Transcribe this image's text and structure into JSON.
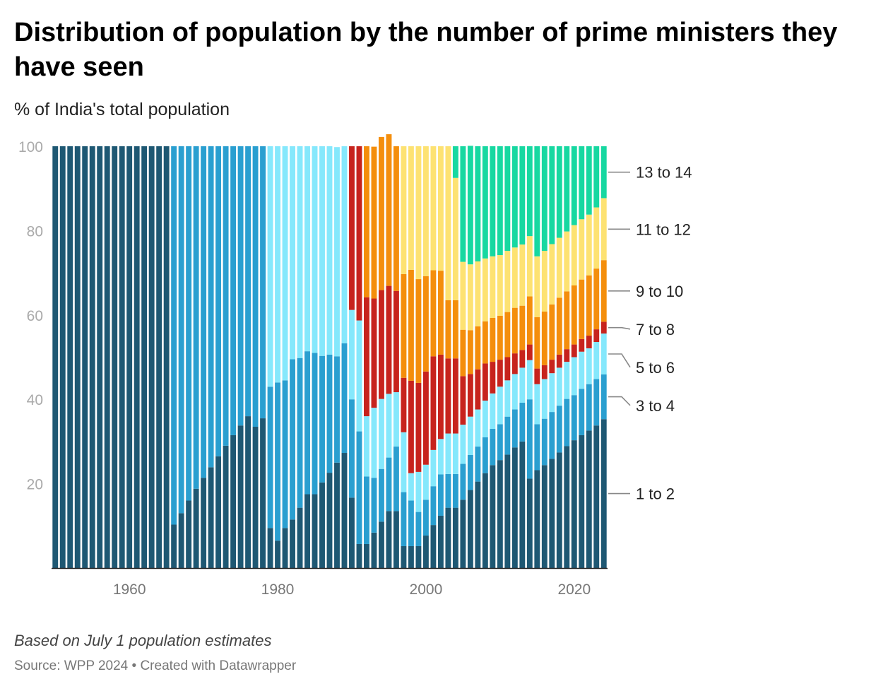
{
  "title": "Distribution of population by the number of prime ministers they have seen",
  "subtitle": "% of India's total population",
  "note": "Based on July 1 population estimates",
  "source": "Source: WPP 2024 • Created with Datawrapper",
  "chart_data": {
    "type": "bar",
    "stacked": true,
    "grid": false,
    "ylim": [
      0,
      100
    ],
    "yticks": [
      "20",
      "40",
      "60",
      "80",
      "100"
    ],
    "xticks": [
      "1960",
      "1980",
      "2000",
      "2020"
    ],
    "legend_placement": "right, labels aligned to the last bar",
    "categories": [
      1950,
      1951,
      1952,
      1953,
      1954,
      1955,
      1956,
      1957,
      1958,
      1959,
      1960,
      1961,
      1962,
      1963,
      1964,
      1965,
      1966,
      1967,
      1968,
      1969,
      1970,
      1971,
      1972,
      1973,
      1974,
      1975,
      1976,
      1977,
      1978,
      1979,
      1980,
      1981,
      1982,
      1983,
      1984,
      1985,
      1986,
      1987,
      1988,
      1989,
      1990,
      1991,
      1992,
      1993,
      1994,
      1995,
      1996,
      1997,
      1998,
      1999,
      2000,
      2001,
      2002,
      2003,
      2004,
      2005,
      2006,
      2007,
      2008,
      2009,
      2010,
      2011,
      2012,
      2013,
      2014,
      2015,
      2016,
      2017,
      2018,
      2019,
      2020,
      2021,
      2022,
      2023,
      2024
    ],
    "series": [
      {
        "name": "1 to 2",
        "color": "#1e5873",
        "values": [
          100,
          100,
          100,
          100,
          100,
          100,
          100,
          100,
          100,
          100,
          100,
          100,
          100,
          100,
          100,
          100,
          10.3,
          13,
          16,
          18.8,
          21.4,
          23.9,
          26.5,
          29,
          31.5,
          33.8,
          36,
          33.5,
          35.5,
          9.5,
          6.5,
          9.5,
          11.5,
          14.3,
          17.5,
          17.5,
          20.3,
          22.6,
          25,
          27.3,
          16.7,
          5.7,
          5.7,
          8.4,
          11,
          13.5,
          13.5,
          5.2,
          5.2,
          5.2,
          7.7,
          10.2,
          12.4,
          14.3,
          14.3,
          16.2,
          18.5,
          20.5,
          22.5,
          24.4,
          25.6,
          26.9,
          28.6,
          30,
          21.2,
          23.2,
          24.4,
          25.9,
          27.4,
          28.9,
          30.3,
          31.5,
          32.6,
          33.8,
          35.3
        ]
      },
      {
        "name": "3 to 4",
        "color": "#2a9fd0",
        "values": [
          0,
          0,
          0,
          0,
          0,
          0,
          0,
          0,
          0,
          0,
          0,
          0,
          0,
          0,
          0,
          0,
          89.7,
          87,
          84,
          81.2,
          78.6,
          76.1,
          73.5,
          71,
          68.5,
          66.2,
          64,
          66.5,
          64.5,
          33.5,
          37.5,
          35,
          38,
          35.5,
          33.9,
          33.5,
          30,
          28,
          25.2,
          26,
          23.3,
          26.7,
          16,
          13,
          12.5,
          12.7,
          15.3,
          12.8,
          10.8,
          8.1,
          8.5,
          9.2,
          9.8,
          8,
          8,
          8.5,
          8.3,
          8.3,
          8.5,
          8.6,
          8.5,
          9,
          9,
          9.2,
          18.8,
          10.9,
          11,
          11.1,
          11.1,
          11.2,
          10.7,
          11,
          11,
          11,
          10.6
        ]
      },
      {
        "name": "5 to 6",
        "color": "#85e8fc",
        "values": [
          0,
          0,
          0,
          0,
          0,
          0,
          0,
          0,
          0,
          0,
          0,
          0,
          0,
          0,
          0,
          0,
          0,
          0,
          0,
          0,
          0,
          0,
          0,
          0,
          0,
          0,
          0,
          0,
          0,
          57,
          56,
          55.5,
          50.5,
          50.2,
          48.6,
          49,
          49.7,
          49.4,
          49.6,
          46.7,
          21.2,
          26.3,
          14.3,
          16.6,
          16.6,
          15.1,
          12.9,
          14.2,
          6.5,
          9.5,
          8.3,
          8.6,
          8.4,
          9.6,
          9.6,
          9.3,
          9.1,
          8.8,
          8.7,
          8.4,
          8.9,
          8.6,
          8.4,
          8.3,
          9.3,
          9.5,
          9.4,
          9.2,
          9,
          8.8,
          9,
          8.8,
          8.5,
          8.8,
          9.7
        ]
      },
      {
        "name": "7 to 8",
        "color": "#c7231d",
        "values": [
          0,
          0,
          0,
          0,
          0,
          0,
          0,
          0,
          0,
          0,
          0,
          0,
          0,
          0,
          0,
          0,
          0,
          0,
          0,
          0,
          0,
          0,
          0,
          0,
          0,
          0,
          0,
          0,
          0,
          0,
          0,
          0,
          0,
          0,
          0,
          0,
          0,
          0,
          0,
          0,
          38.8,
          41.3,
          28.2,
          25.9,
          25.8,
          25.6,
          24,
          12.9,
          21.9,
          21.1,
          22.1,
          22.2,
          20,
          17.8,
          17.8,
          11.5,
          10.1,
          9.5,
          8.8,
          7.5,
          6.4,
          5.5,
          4.9,
          4.2,
          3.7,
          3.7,
          3.3,
          3.2,
          3.1,
          3,
          3,
          3,
          3,
          3,
          2.8
        ]
      },
      {
        "name": "9 to 10",
        "color": "#f48e0c",
        "values": [
          0,
          0,
          0,
          0,
          0,
          0,
          0,
          0,
          0,
          0,
          0,
          0,
          0,
          0,
          0,
          0,
          0,
          0,
          0,
          0,
          0,
          0,
          0,
          0,
          0,
          0,
          0,
          0,
          0,
          0,
          0,
          0,
          0,
          0,
          0,
          0,
          0,
          0,
          0,
          0,
          0,
          0,
          35.8,
          36,
          36.3,
          38.5,
          34.3,
          24.6,
          26.3,
          24.6,
          22.6,
          20.4,
          19.9,
          13.8,
          13.8,
          11,
          10.4,
          10.2,
          10,
          10.4,
          10.4,
          10.7,
          10.8,
          10.5,
          11.4,
          12.2,
          12.7,
          13.1,
          13.5,
          13.7,
          14,
          14.1,
          14.3,
          14.4,
          14.6
        ]
      },
      {
        "name": "11 to 12",
        "color": "#fde272",
        "values": [
          0,
          0,
          0,
          0,
          0,
          0,
          0,
          0,
          0,
          0,
          0,
          0,
          0,
          0,
          0,
          0,
          0,
          0,
          0,
          0,
          0,
          0,
          0,
          0,
          0,
          0,
          0,
          0,
          0,
          0,
          0,
          0,
          0,
          0,
          0,
          0,
          0,
          0,
          0,
          0,
          0,
          0,
          0,
          0,
          0,
          0,
          0,
          30.3,
          29.3,
          31.5,
          30.8,
          29.4,
          29.5,
          36.5,
          29,
          16.1,
          15.6,
          15.4,
          14.9,
          14.6,
          14.4,
          14.5,
          14.3,
          14.5,
          14.3,
          14.4,
          14.4,
          14.3,
          14.2,
          14.2,
          14.3,
          14.3,
          14.4,
          14.5,
          14.7
        ]
      },
      {
        "name": "13 to 14",
        "color": "#17d8a1",
        "values": [
          0,
          0,
          0,
          0,
          0,
          0,
          0,
          0,
          0,
          0,
          0,
          0,
          0,
          0,
          0,
          0,
          0,
          0,
          0,
          0,
          0,
          0,
          0,
          0,
          0,
          0,
          0,
          0,
          0,
          0,
          0,
          0,
          0,
          0,
          0,
          0,
          0,
          0,
          0,
          0,
          0,
          0,
          0,
          0,
          0,
          0,
          0,
          0,
          0,
          0,
          0,
          0,
          0,
          0,
          7.5,
          27.4,
          28.1,
          27.3,
          26.6,
          26.1,
          25.8,
          24.8,
          24,
          23.3,
          21.3,
          26.1,
          24.8,
          23.2,
          21.7,
          20.2,
          18.7,
          17.3,
          16.2,
          14.5,
          12.3
        ]
      }
    ]
  }
}
